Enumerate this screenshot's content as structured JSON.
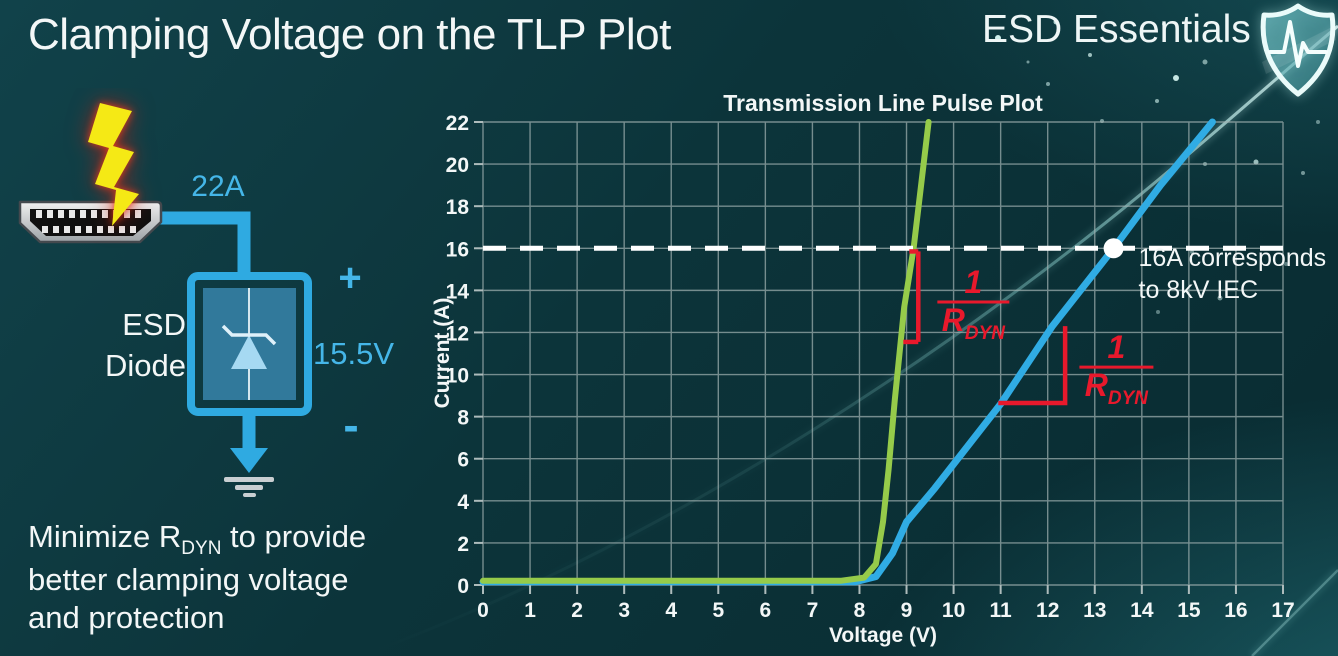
{
  "header": {
    "title": "Clamping Voltage on the TLP Plot"
  },
  "brand": {
    "name": "ESD Essentials"
  },
  "diagram": {
    "surge_current": "22A",
    "device_line1": "ESD",
    "device_line2": "Diode",
    "polarity_plus": "+",
    "clamp_voltage": "15.5V",
    "polarity_minus": "-"
  },
  "note": {
    "pre": "Minimize R",
    "sub": "DYN",
    "post": " to provide",
    "line2": "better clamping voltage",
    "line3": "and protection"
  },
  "chart_data": {
    "type": "line",
    "title": "Transmission Line Pulse Plot",
    "xlabel": "Voltage (V)",
    "ylabel": "Current (A)",
    "xlim": [
      0,
      17
    ],
    "ylim": [
      0,
      22
    ],
    "x_tick_step": 1,
    "y_tick_step": 2,
    "grid": {
      "on": true,
      "x_step": 1,
      "y_step": 2,
      "color": "#9FB0B0"
    },
    "series": [
      {
        "name": "blue-curve-higher-rdyn",
        "color": "#30ACE4",
        "width": 7,
        "points": [
          [
            0,
            0.15
          ],
          [
            7.9,
            0.15
          ],
          [
            8.35,
            0.4
          ],
          [
            8.7,
            1.5
          ],
          [
            9.0,
            3.0
          ],
          [
            9.6,
            4.6
          ],
          [
            10.3,
            6.6
          ],
          [
            11.0,
            8.6
          ],
          [
            12.1,
            12.3
          ],
          [
            13.4,
            16
          ],
          [
            14.4,
            19
          ],
          [
            15.5,
            22
          ]
        ]
      },
      {
        "name": "green-curve-lower-rdyn",
        "color": "#96CB4A",
        "width": 6,
        "points": [
          [
            0,
            0.2
          ],
          [
            7.6,
            0.2
          ],
          [
            8.1,
            0.35
          ],
          [
            8.35,
            1.0
          ],
          [
            8.5,
            3.0
          ],
          [
            8.62,
            5.5
          ],
          [
            8.75,
            8.8
          ],
          [
            8.95,
            13.2
          ],
          [
            9.15,
            16
          ],
          [
            9.47,
            22
          ]
        ]
      }
    ],
    "threshold_line": {
      "y": 16,
      "color": "#FFFFFF",
      "style": "dashed"
    },
    "marker": {
      "x": 13.4,
      "y": 16,
      "color": "#FFFFFF"
    },
    "marker_label": {
      "line1": "16A corresponds",
      "line2": "to 8kV IEC",
      "x": 13.93,
      "y_line1": 15.15,
      "y_line2": 13.63
    },
    "annotations": [
      {
        "id": "green-slope",
        "bracket": {
          "type": "vertical",
          "x": 9.25,
          "i_top": 15.85,
          "i_bottom": 11.55,
          "tick_top": 9,
          "tick_bottom": 15
        },
        "fraction": {
          "cx": 10.42,
          "bar_i": 13.45,
          "half_width": 36,
          "numerator": "1",
          "denominator": "R",
          "denominator_sub": "DYN"
        },
        "color": "#E8192C"
      },
      {
        "id": "blue-slope",
        "bracket": {
          "type": "corner",
          "x": 12.37,
          "i_top": 12.3,
          "i_bottom": 8.65,
          "x_left": 10.95
        },
        "fraction": {
          "cx": 13.46,
          "bar_i": 10.35,
          "half_width": 37,
          "numerator": "1",
          "denominator": "R",
          "denominator_sub": "DYN"
        },
        "color": "#E8192C"
      }
    ]
  },
  "colors": {
    "accent_cyan": "#2FAAE1",
    "label_cyan": "#45B6E8",
    "curve_green": "#96CB4A",
    "curve_blue": "#30ACE4",
    "annotation_red": "#E8192C",
    "grid_gray": "#9FB0B0",
    "text_white": "#F3F7F7",
    "bolt_yellow": "#F5E915"
  }
}
